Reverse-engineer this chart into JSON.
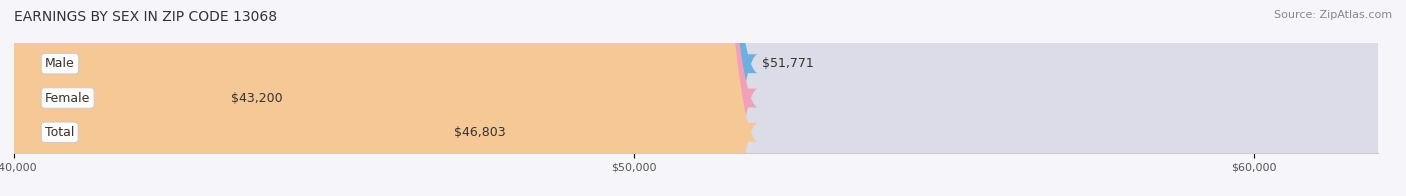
{
  "title": "EARNINGS BY SEX IN ZIP CODE 13068",
  "source": "Source: ZipAtlas.com",
  "categories": [
    "Male",
    "Female",
    "Total"
  ],
  "values": [
    51771,
    43200,
    46803
  ],
  "bar_colors": [
    "#6ab0e0",
    "#f0a0b8",
    "#f5c896"
  ],
  "bar_bg_color": "#e8e8f0",
  "label_colors": [
    "#5595c8",
    "#e880a0",
    "#e8a860"
  ],
  "value_labels": [
    "$51,771",
    "$43,200",
    "$46,803"
  ],
  "xmin": 40000,
  "xmax": 62000,
  "xticks": [
    40000,
    50000,
    60000
  ],
  "xtick_labels": [
    "$40,000",
    "$50,000",
    "$60,000"
  ],
  "background_color": "#f5f5fa",
  "bar_bg_alpha": 0.5,
  "title_fontsize": 10,
  "source_fontsize": 8,
  "label_fontsize": 9,
  "value_fontsize": 9
}
